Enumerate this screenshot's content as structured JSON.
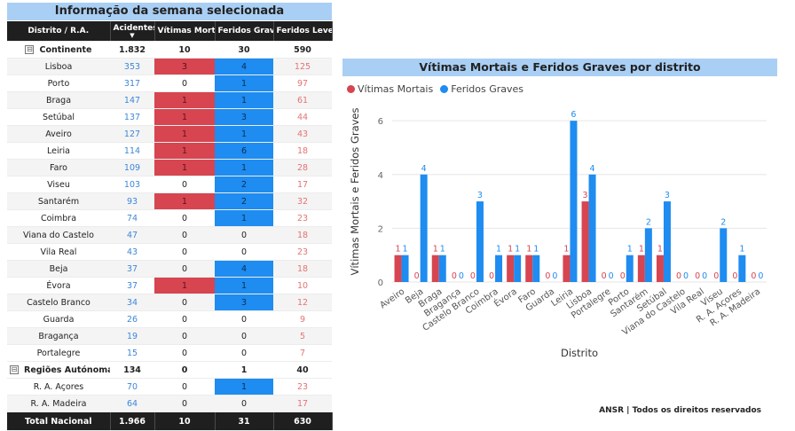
{
  "left_panel": {
    "title": "Informação da semana selecionada",
    "headers": {
      "distrito": "Distrito / R.A.",
      "acidentes": "Acidentes",
      "vitimas": "Vítimas Mortais",
      "graves": "Feridos Graves",
      "leves": "Feridos Leves"
    },
    "sort_indicator": "▼",
    "expander_symbol": "⊟",
    "rows": [
      {
        "group": true,
        "distrito": "Continente",
        "acidentes": "1.832",
        "vitimas": "10",
        "graves": "30",
        "leves": "590"
      },
      {
        "group": false,
        "distrito": "Lisboa",
        "acidentes": "353",
        "vitimas": "3",
        "graves": "4",
        "leves": "125"
      },
      {
        "group": false,
        "distrito": "Porto",
        "acidentes": "317",
        "vitimas": "0",
        "graves": "1",
        "leves": "97"
      },
      {
        "group": false,
        "distrito": "Braga",
        "acidentes": "147",
        "vitimas": "1",
        "graves": "1",
        "leves": "61"
      },
      {
        "group": false,
        "distrito": "Setúbal",
        "acidentes": "137",
        "vitimas": "1",
        "graves": "3",
        "leves": "44"
      },
      {
        "group": false,
        "distrito": "Aveiro",
        "acidentes": "127",
        "vitimas": "1",
        "graves": "1",
        "leves": "43"
      },
      {
        "group": false,
        "distrito": "Leiria",
        "acidentes": "114",
        "vitimas": "1",
        "graves": "6",
        "leves": "18"
      },
      {
        "group": false,
        "distrito": "Faro",
        "acidentes": "109",
        "vitimas": "1",
        "graves": "1",
        "leves": "28"
      },
      {
        "group": false,
        "distrito": "Viseu",
        "acidentes": "103",
        "vitimas": "0",
        "graves": "2",
        "leves": "17"
      },
      {
        "group": false,
        "distrito": "Santarém",
        "acidentes": "93",
        "vitimas": "1",
        "graves": "2",
        "leves": "32"
      },
      {
        "group": false,
        "distrito": "Coimbra",
        "acidentes": "74",
        "vitimas": "0",
        "graves": "1",
        "leves": "23"
      },
      {
        "group": false,
        "distrito": "Viana do Castelo",
        "acidentes": "47",
        "vitimas": "0",
        "graves": "0",
        "leves": "18"
      },
      {
        "group": false,
        "distrito": "Vila Real",
        "acidentes": "43",
        "vitimas": "0",
        "graves": "0",
        "leves": "23"
      },
      {
        "group": false,
        "distrito": "Beja",
        "acidentes": "37",
        "vitimas": "0",
        "graves": "4",
        "leves": "18"
      },
      {
        "group": false,
        "distrito": "Évora",
        "acidentes": "37",
        "vitimas": "1",
        "graves": "1",
        "leves": "10"
      },
      {
        "group": false,
        "distrito": "Castelo Branco",
        "acidentes": "34",
        "vitimas": "0",
        "graves": "3",
        "leves": "12"
      },
      {
        "group": false,
        "distrito": "Guarda",
        "acidentes": "26",
        "vitimas": "0",
        "graves": "0",
        "leves": "9"
      },
      {
        "group": false,
        "distrito": "Bragança",
        "acidentes": "19",
        "vitimas": "0",
        "graves": "0",
        "leves": "5"
      },
      {
        "group": false,
        "distrito": "Portalegre",
        "acidentes": "15",
        "vitimas": "0",
        "graves": "0",
        "leves": "7"
      },
      {
        "group": true,
        "distrito": "Regiões Autónomas",
        "acidentes": "134",
        "vitimas": "0",
        "graves": "1",
        "leves": "40"
      },
      {
        "group": false,
        "distrito": "R. A. Açores",
        "acidentes": "70",
        "vitimas": "0",
        "graves": "1",
        "leves": "23"
      },
      {
        "group": false,
        "distrito": "R. A. Madeira",
        "acidentes": "64",
        "vitimas": "0",
        "graves": "0",
        "leves": "17"
      }
    ],
    "total": {
      "distrito": "Total Nacional",
      "acidentes": "1.966",
      "vitimas": "10",
      "graves": "31",
      "leves": "630"
    }
  },
  "chart_panel": {
    "title": "Vítimas Mortais e Feridos Graves por distrito",
    "legend": [
      {
        "name": "Vítimas Mortais",
        "color": "#d64550"
      },
      {
        "name": "Feridos Graves",
        "color": "#1e8cf0"
      }
    ]
  },
  "chart_data": {
    "type": "bar",
    "title": "Vítimas Mortais e Feridos Graves por distrito",
    "xlabel": "Distrito",
    "ylabel": "Vítimas Mortais e Feridos Graves",
    "ylim": [
      0,
      6.6
    ],
    "yticks": [
      0,
      2,
      4,
      6
    ],
    "grid": true,
    "legend_position": "top-left",
    "categories": [
      "Aveiro",
      "Beja",
      "Braga",
      "Bragança",
      "Castelo Branco",
      "Coimbra",
      "Évora",
      "Faro",
      "Guarda",
      "Leiria",
      "Lisboa",
      "Portalegre",
      "Porto",
      "Santarém",
      "Setúbal",
      "Viana do Castelo",
      "Vila Real",
      "Viseu",
      "R. A. Açores",
      "R. A. Madeira"
    ],
    "series": [
      {
        "name": "Vítimas Mortais",
        "color": "#d64550",
        "values": [
          1,
          0,
          1,
          0,
          0,
          0,
          1,
          1,
          0,
          1,
          3,
          0,
          0,
          1,
          1,
          0,
          0,
          0,
          0,
          0
        ]
      },
      {
        "name": "Feridos Graves",
        "color": "#1e8cf0",
        "values": [
          1,
          4,
          1,
          0,
          3,
          1,
          1,
          1,
          0,
          6,
          4,
          0,
          1,
          2,
          3,
          0,
          0,
          2,
          1,
          0
        ]
      }
    ]
  },
  "footer": {
    "credit": "ANSR | Todos os direitos reservados"
  }
}
